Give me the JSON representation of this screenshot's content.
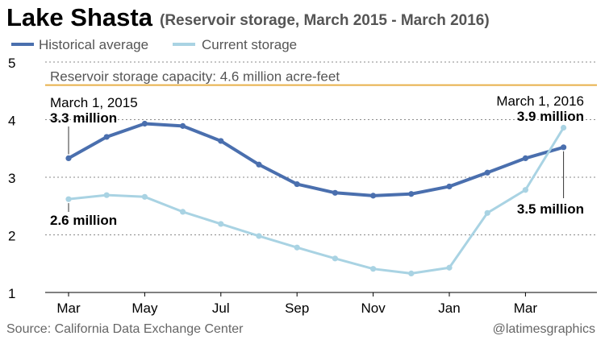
{
  "chart_data": {
    "type": "line",
    "title": "Lake Shasta",
    "subtitle": "(Reservoir storage, March 2015 - March 2016)",
    "ylim": [
      1,
      5
    ],
    "y_ticks": [
      "1",
      "2",
      "3",
      "4",
      "5"
    ],
    "x_tick_labels": [
      "Mar",
      "May",
      "Jul",
      "Sep",
      "Nov",
      "Jan",
      "Mar"
    ],
    "x_tick_positions": [
      0,
      2,
      4,
      6,
      8,
      10,
      12
    ],
    "grid": "horizontal dotted",
    "legend_position": "top-left",
    "series": [
      {
        "name": "Historical average",
        "color": "#4a6fae",
        "x": [
          0,
          1,
          2,
          3,
          4,
          5,
          6,
          7,
          8,
          9,
          10,
          11,
          12,
          13
        ],
        "values": [
          3.33,
          3.7,
          3.93,
          3.89,
          3.63,
          3.22,
          2.88,
          2.73,
          2.68,
          2.71,
          2.84,
          3.08,
          3.33,
          3.52
        ]
      },
      {
        "name": "Current storage",
        "color": "#a9d3e3",
        "x": [
          0,
          1,
          2,
          3,
          4,
          5,
          6,
          7,
          8,
          9,
          10,
          11,
          12,
          13
        ],
        "values": [
          2.62,
          2.69,
          2.66,
          2.4,
          2.19,
          1.98,
          1.78,
          1.59,
          1.41,
          1.33,
          1.43,
          2.38,
          2.78,
          3.86
        ]
      }
    ],
    "reference_line": {
      "value": 4.6,
      "label": "Reservoir storage capacity: 4.6 million acre-feet",
      "color": "#e8b04a"
    },
    "annotations": {
      "start_date": "March 1, 2015",
      "start_hist": "3.3 million",
      "start_curr": "2.6 million",
      "end_date": "March 1, 2016",
      "end_curr": "3.9 million",
      "end_hist": "3.5 million"
    }
  },
  "footer": {
    "source": "Source: California Data Exchange Center",
    "credit": "@latimesgraphics"
  }
}
